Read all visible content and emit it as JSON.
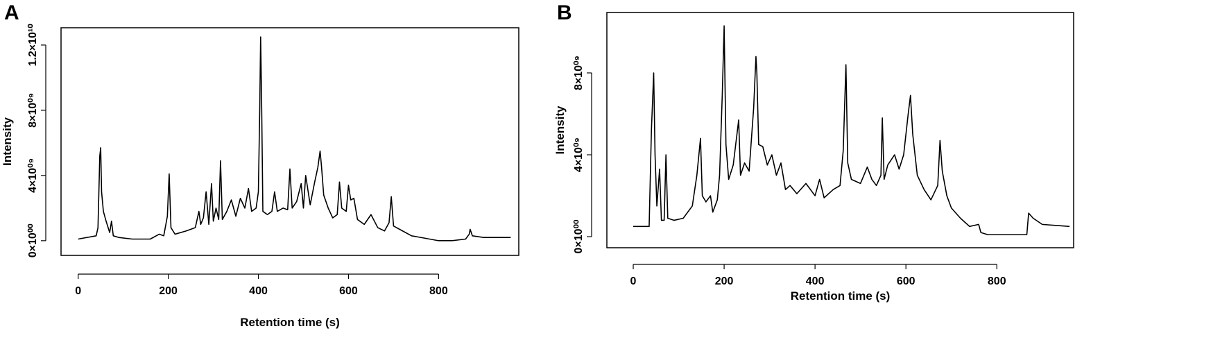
{
  "chart_data": [
    {
      "type": "line",
      "label": "A",
      "xlabel": "Retention time (s)",
      "ylabel": "Intensity",
      "color": "#000000",
      "xlim": [
        -38,
        978
      ],
      "ylim": [
        -900000000.0,
        13060000000.0
      ],
      "xticks": [
        0,
        200,
        400,
        600,
        800
      ],
      "yticks": [
        {
          "value": 0,
          "label": "0×10⁰⁰"
        },
        {
          "value": 4000000000.0,
          "label": "4×10⁰⁹"
        },
        {
          "value": 8000000000.0,
          "label": "8×10⁰⁹"
        },
        {
          "value": 12000000000.0,
          "label": "1.2×10¹⁰"
        }
      ],
      "x": [
        0,
        40,
        44,
        48,
        50,
        52,
        56,
        62,
        70,
        74,
        78,
        90,
        120,
        160,
        180,
        190,
        198,
        202,
        206,
        215,
        240,
        260,
        268,
        272,
        278,
        284,
        290,
        296,
        300,
        306,
        312,
        316,
        320,
        330,
        340,
        350,
        360,
        370,
        378,
        385,
        395,
        400,
        403,
        405,
        407,
        410,
        420,
        430,
        436,
        442,
        455,
        465,
        470,
        475,
        485,
        495,
        500,
        505,
        515,
        525,
        532,
        537,
        540,
        545,
        555,
        565,
        575,
        580,
        585,
        595,
        600,
        605,
        612,
        620,
        635,
        650,
        665,
        680,
        690,
        695,
        700,
        720,
        740,
        760,
        780,
        800,
        830,
        860,
        868,
        870,
        875,
        900,
        960
      ],
      "values": [
        100000000.0,
        300000000.0,
        800000000.0,
        5200000000.0,
        5700000000.0,
        3000000000.0,
        1800000000.0,
        1200000000.0,
        500000000.0,
        1200000000.0,
        300000000.0,
        200000000.0,
        100000000.0,
        100000000.0,
        400000000.0,
        300000000.0,
        1500000000.0,
        4100000000.0,
        800000000.0,
        400000000.0,
        600000000.0,
        800000000.0,
        1800000000.0,
        1000000000.0,
        1400000000.0,
        3000000000.0,
        1000000000.0,
        3500000000.0,
        1200000000.0,
        2000000000.0,
        1300000000.0,
        4900000000.0,
        1300000000.0,
        1800000000.0,
        2500000000.0,
        1500000000.0,
        2600000000.0,
        2000000000.0,
        3200000000.0,
        1800000000.0,
        2000000000.0,
        3000000000.0,
        8000000000.0,
        12500000000.0,
        9000000000.0,
        1800000000.0,
        1600000000.0,
        1800000000.0,
        3000000000.0,
        1800000000.0,
        2000000000.0,
        1900000000.0,
        4400000000.0,
        2000000000.0,
        2400000000.0,
        3500000000.0,
        2000000000.0,
        4000000000.0,
        2200000000.0,
        3600000000.0,
        4500000000.0,
        5500000000.0,
        4600000000.0,
        2800000000.0,
        2000000000.0,
        1400000000.0,
        1600000000.0,
        3600000000.0,
        2000000000.0,
        1800000000.0,
        3400000000.0,
        2500000000.0,
        2600000000.0,
        1300000000.0,
        1000000000.0,
        1600000000.0,
        800000000.0,
        600000000.0,
        1100000000.0,
        2700000000.0,
        900000000.0,
        600000000.0,
        300000000.0,
        200000000.0,
        100000000.0,
        0.0,
        0.0,
        100000000.0,
        400000000.0,
        700000000.0,
        300000000.0,
        200000000.0,
        200000000.0
      ]
    },
    {
      "type": "line",
      "label": "B",
      "xlabel": "Retention time (s)",
      "ylabel": "Intensity",
      "color": "#000000",
      "xlim": [
        -58,
        969
      ],
      "ylim": [
        -540000000.0,
        10950000000.0
      ],
      "xticks": [
        0,
        200,
        400,
        600,
        800
      ],
      "yticks": [
        {
          "value": 0,
          "label": "0×10⁰⁰"
        },
        {
          "value": 4000000000.0,
          "label": "4×10⁰⁹"
        },
        {
          "value": 8000000000.0,
          "label": "8×10⁰⁹"
        }
      ],
      "x": [
        0,
        35,
        40,
        45,
        48,
        52,
        58,
        62,
        68,
        72,
        76,
        90,
        110,
        130,
        140,
        148,
        152,
        160,
        170,
        175,
        185,
        190,
        196,
        200,
        204,
        210,
        220,
        232,
        236,
        245,
        255,
        265,
        270,
        272,
        276,
        285,
        295,
        305,
        315,
        325,
        335,
        345,
        360,
        380,
        400,
        410,
        420,
        440,
        455,
        462,
        468,
        472,
        480,
        500,
        515,
        525,
        535,
        545,
        548,
        552,
        560,
        575,
        585,
        595,
        605,
        610,
        615,
        625,
        640,
        655,
        670,
        675,
        680,
        690,
        700,
        720,
        740,
        760,
        765,
        780,
        800,
        840,
        866,
        870,
        880,
        900,
        960
      ],
      "values": [
        500000000.0,
        500000000.0,
        5200000000.0,
        8000000000.0,
        4000000000.0,
        1500000000.0,
        3300000000.0,
        800000000.0,
        800000000.0,
        4000000000.0,
        900000000.0,
        800000000.0,
        900000000.0,
        1500000000.0,
        3000000000.0,
        4800000000.0,
        2000000000.0,
        1700000000.0,
        2000000000.0,
        1200000000.0,
        1800000000.0,
        3000000000.0,
        7000000000.0,
        10300000000.0,
        4500000000.0,
        2800000000.0,
        3500000000.0,
        5700000000.0,
        3000000000.0,
        3600000000.0,
        3200000000.0,
        6300000000.0,
        8800000000.0,
        8000000000.0,
        4500000000.0,
        4400000000.0,
        3500000000.0,
        4000000000.0,
        3000000000.0,
        3600000000.0,
        2300000000.0,
        2500000000.0,
        2100000000.0,
        2600000000.0,
        2000000000.0,
        2800000000.0,
        1900000000.0,
        2300000000.0,
        2500000000.0,
        4200000000.0,
        8400000000.0,
        3600000000.0,
        2800000000.0,
        2600000000.0,
        3400000000.0,
        2800000000.0,
        2500000000.0,
        3000000000.0,
        5800000000.0,
        2800000000.0,
        3500000000.0,
        4000000000.0,
        3300000000.0,
        4000000000.0,
        6000000000.0,
        6900000000.0,
        5000000000.0,
        3000000000.0,
        2300000000.0,
        1800000000.0,
        2500000000.0,
        4700000000.0,
        3200000000.0,
        2000000000.0,
        1400000000.0,
        900000000.0,
        500000000.0,
        600000000.0,
        200000000.0,
        100000000.0,
        100000000.0,
        100000000.0,
        100000000.0,
        1150000000.0,
        900000000.0,
        600000000.0,
        500000000.0
      ]
    }
  ]
}
